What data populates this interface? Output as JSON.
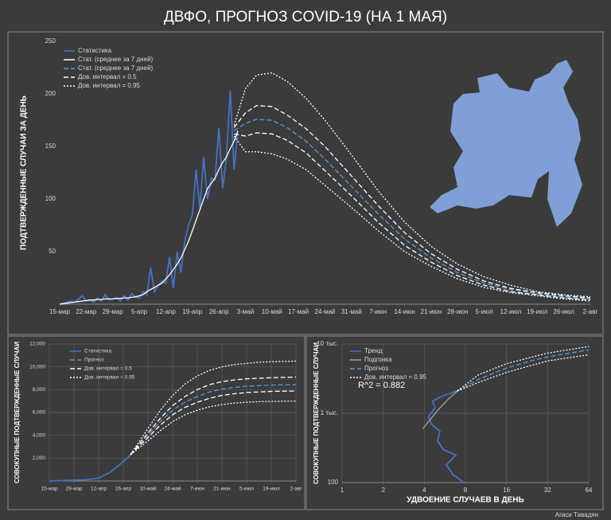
{
  "title": "ДВФО, ПРОГНОЗ COVID-19 (НА 1 МАЯ)",
  "author": "Агаси Тавадян",
  "chart_data": [
    {
      "type": "line",
      "ylabel": "ПОДТВЕРЖДЕННЫЕ СЛУЧАИ ЗА ДЕНЬ",
      "xlim": [
        0,
        140
      ],
      "ylim": [
        0,
        250
      ],
      "grid": false,
      "legend": "top-left",
      "xticks": [
        {
          "value": 0,
          "label": "15-мар"
        },
        {
          "value": 7,
          "label": "22-мар"
        },
        {
          "value": 14,
          "label": "29-мар"
        },
        {
          "value": 21,
          "label": "5-апр"
        },
        {
          "value": 28,
          "label": "12-апр"
        },
        {
          "value": 35,
          "label": "19-апр"
        },
        {
          "value": 42,
          "label": "26-апр"
        },
        {
          "value": 49,
          "label": "3-май"
        },
        {
          "value": 56,
          "label": "10-май"
        },
        {
          "value": 63,
          "label": "17-май"
        },
        {
          "value": 70,
          "label": "24-май"
        },
        {
          "value": 77,
          "label": "31-май"
        },
        {
          "value": 84,
          "label": "7-июн"
        },
        {
          "value": 91,
          "label": "14-июн"
        },
        {
          "value": 98,
          "label": "21-июн"
        },
        {
          "value": 105,
          "label": "28-июн"
        },
        {
          "value": 112,
          "label": "5-июл"
        },
        {
          "value": 119,
          "label": "12-июл"
        },
        {
          "value": 126,
          "label": "19-июл"
        },
        {
          "value": 133,
          "label": "26-июл"
        },
        {
          "value": 140,
          "label": "2-авг"
        }
      ],
      "yticks": [
        50,
        100,
        150,
        200,
        250
      ],
      "series": [
        {
          "name": "Статистика",
          "color": "#4472c4",
          "style": "solid",
          "x": [
            0,
            1,
            2,
            3,
            4,
            5,
            6,
            7,
            8,
            9,
            10,
            11,
            12,
            13,
            14,
            15,
            16,
            17,
            18,
            19,
            20,
            21,
            22,
            23,
            24,
            25,
            26,
            27,
            28,
            29,
            30,
            31,
            32,
            33,
            34,
            35,
            36,
            37,
            38,
            39,
            40,
            41,
            42,
            43,
            44,
            45,
            46,
            47
          ],
          "values": [
            0,
            1,
            2,
            3,
            2,
            5,
            8,
            3,
            4,
            2,
            6,
            3,
            9,
            4,
            5,
            6,
            3,
            8,
            4,
            10,
            7,
            6,
            12,
            9,
            35,
            12,
            18,
            22,
            20,
            45,
            15,
            50,
            30,
            60,
            75,
            85,
            128,
            90,
            140,
            100,
            120,
            118,
            168,
            110,
            140,
            203,
            128,
            165
          ]
        },
        {
          "name": "Стат. (среднее за 7 дней)",
          "color": "#ffffff",
          "style": "solid",
          "x": [
            0,
            1,
            2,
            3,
            4,
            5,
            6,
            7,
            8,
            9,
            10,
            11,
            12,
            13,
            14,
            15,
            16,
            17,
            18,
            19,
            20,
            21,
            22,
            23,
            24,
            25,
            26,
            27,
            28,
            29,
            30,
            31,
            32,
            33,
            34,
            35,
            36,
            37,
            38,
            39,
            40,
            41,
            42,
            43,
            44,
            45,
            46,
            47
          ],
          "values": [
            0,
            0.5,
            1,
            1.5,
            2,
            2.5,
            3,
            3.5,
            4,
            4,
            4.5,
            4.5,
            5,
            5,
            5,
            5.5,
            5.5,
            6,
            6,
            6.5,
            7,
            8,
            9,
            12,
            14,
            16,
            18,
            20,
            24,
            28,
            33,
            38,
            44,
            52,
            60,
            70,
            80,
            90,
            100,
            110,
            115,
            120,
            128,
            135,
            140,
            148,
            155,
            165
          ]
        },
        {
          "name": "Стат. (среднее за 7 дней)",
          "color": "#5b9bd5",
          "style": "dashed",
          "x": [
            46,
            49,
            52,
            56,
            60,
            65,
            70,
            77,
            84,
            91,
            98,
            105,
            112,
            119,
            126,
            133,
            140
          ],
          "values": [
            165,
            172,
            176,
            175,
            168,
            155,
            138,
            112,
            86,
            62,
            44,
            30,
            20,
            14,
            10,
            7,
            5
          ]
        },
        {
          "name": "Дов. интервал = 0.5",
          "color": "#ffffff",
          "style": "dashed",
          "x": [
            46,
            49,
            52,
            56,
            60,
            65,
            70,
            77,
            84,
            91,
            98,
            105,
            112,
            119,
            126,
            133,
            140
          ],
          "upper": [
            168,
            182,
            189,
            188,
            180,
            167,
            150,
            122,
            94,
            68,
            48,
            33,
            22,
            15,
            11,
            8,
            6
          ],
          "lower": [
            162,
            160,
            163,
            162,
            156,
            144,
            127,
            103,
            78,
            56,
            40,
            27,
            18,
            12,
            9,
            6,
            4
          ]
        },
        {
          "name": "Дов. интервал = 0.95",
          "color": "#ffffff",
          "style": "dotted",
          "x": [
            46,
            49,
            52,
            56,
            60,
            65,
            70,
            77,
            84,
            91,
            98,
            105,
            112,
            119,
            126,
            133,
            140
          ],
          "upper": [
            170,
            205,
            218,
            220,
            212,
            196,
            175,
            142,
            108,
            78,
            55,
            38,
            26,
            18,
            12,
            9,
            7
          ],
          "lower": [
            160,
            145,
            145,
            143,
            138,
            128,
            113,
            92,
            70,
            50,
            36,
            24,
            16,
            11,
            8,
            5,
            3
          ]
        }
      ]
    },
    {
      "type": "line",
      "ylabel": "СОВОКУПНЫЕ ПОДТВЕРЖДЕННЫЕ СЛУЧАИ",
      "xlim": [
        0,
        140
      ],
      "ylim": [
        0,
        12000
      ],
      "grid": true,
      "legend": "top-left",
      "xticks": [
        {
          "value": 0,
          "label": "15-мар"
        },
        {
          "value": 14,
          "label": "29-мар"
        },
        {
          "value": 28,
          "label": "12-апр"
        },
        {
          "value": 42,
          "label": "26-апр"
        },
        {
          "value": 56,
          "label": "10-май"
        },
        {
          "value": 70,
          "label": "24-май"
        },
        {
          "value": 84,
          "label": "7-июн"
        },
        {
          "value": 98,
          "label": "21-июн"
        },
        {
          "value": 112,
          "label": "5-июл"
        },
        {
          "value": 126,
          "label": "19-июл"
        },
        {
          "value": 140,
          "label": "2-авг"
        }
      ],
      "yticks": [
        {
          "value": 2000,
          "label": "2,000"
        },
        {
          "value": 4000,
          "label": "4,000"
        },
        {
          "value": 6000,
          "label": "6,000"
        },
        {
          "value": 8000,
          "label": "8,000"
        },
        {
          "value": 10000,
          "label": "10,000"
        },
        {
          "value": 12000,
          "label": "12,000"
        }
      ],
      "series": [
        {
          "name": "Статистика",
          "color": "#4472c4",
          "style": "solid",
          "x": [
            0,
            7,
            14,
            21,
            28,
            35,
            42,
            47
          ],
          "values": [
            5,
            30,
            70,
            110,
            250,
            800,
            1700,
            2400
          ]
        },
        {
          "name": "Прогноз",
          "color": "#5b9bd5",
          "style": "dashed",
          "x": [
            46,
            56,
            63,
            70,
            77,
            84,
            91,
            98,
            105,
            112,
            119,
            126,
            133,
            140
          ],
          "values": [
            2300,
            4000,
            5200,
            6200,
            6900,
            7400,
            7800,
            8050,
            8200,
            8300,
            8350,
            8400,
            8420,
            8440
          ]
        },
        {
          "name": "Дов. интервал = 0.5",
          "color": "#ffffff",
          "style": "dashed",
          "x": [
            46,
            56,
            63,
            70,
            77,
            84,
            91,
            98,
            105,
            112,
            119,
            126,
            133,
            140
          ],
          "upper": [
            2300,
            4200,
            5500,
            6600,
            7400,
            8000,
            8450,
            8700,
            8850,
            8950,
            9000,
            9050,
            9080,
            9100
          ],
          "lower": [
            2300,
            3800,
            4900,
            5800,
            6450,
            6900,
            7250,
            7500,
            7650,
            7750,
            7800,
            7850,
            7870,
            7880
          ]
        },
        {
          "name": "Дов. интервал = 0.95",
          "color": "#ffffff",
          "style": "dotted",
          "x": [
            46,
            56,
            63,
            70,
            77,
            84,
            91,
            98,
            105,
            112,
            119,
            126,
            133,
            140
          ],
          "upper": [
            2300,
            4600,
            6200,
            7500,
            8500,
            9200,
            9700,
            10000,
            10200,
            10300,
            10400,
            10450,
            10480,
            10500
          ],
          "lower": [
            2300,
            3500,
            4400,
            5200,
            5800,
            6200,
            6500,
            6700,
            6820,
            6900,
            6950,
            6970,
            6990,
            7000
          ]
        }
      ]
    },
    {
      "type": "line",
      "ylabel": "СОВОКУПНЫЕ ПОДТВЕРЖДЕННЫЕ СЛУЧАИ",
      "xlabel": "УДВОЕНИЕ СЛУЧАЕВ В ДЕНЬ",
      "annotation": "R^2 = 0.882",
      "xlog": true,
      "ylog": true,
      "xlim": [
        1,
        64
      ],
      "ylim": [
        100,
        10000
      ],
      "grid": true,
      "legend": "top-left",
      "xticks": [
        1,
        2,
        4,
        8,
        16,
        32,
        64
      ],
      "yticks": [
        100,
        {
          "value": 1000,
          "label": "1 тыс."
        },
        {
          "value": 10000,
          "label": "10 тыс."
        }
      ],
      "series": [
        {
          "name": "Тренд",
          "color": "#4472c4",
          "style": "solid",
          "x": [
            7.8,
            6.5,
            5.8,
            6.8,
            5.5,
            5,
            5.2,
            4.5,
            4.3,
            4.8,
            4.6,
            5.5,
            6.5,
            7.2
          ],
          "values": [
            100,
            130,
            180,
            250,
            300,
            400,
            550,
            700,
            900,
            1200,
            1500,
            1800,
            2000,
            2200
          ]
        },
        {
          "name": "Подгонка",
          "color": "#a6a6a6",
          "style": "solid",
          "x": [
            3.9,
            5,
            6,
            7
          ],
          "values": [
            600,
            1100,
            1600,
            2100
          ]
        },
        {
          "name": "Прогноз",
          "color": "#5b9bd5",
          "style": "dashed",
          "x": [
            7,
            10,
            16,
            24,
            32,
            48,
            64
          ],
          "values": [
            2100,
            3100,
            4500,
            5700,
            6500,
            7500,
            8200
          ]
        },
        {
          "name": "Дов. интервал = 0.95",
          "color": "#ffffff",
          "style": "dotted",
          "x": [
            7,
            10,
            16,
            32,
            64
          ],
          "upper": [
            2100,
            3600,
            5200,
            7400,
            9200
          ],
          "lower": [
            2100,
            2800,
            3900,
            5700,
            7000
          ]
        }
      ]
    }
  ]
}
